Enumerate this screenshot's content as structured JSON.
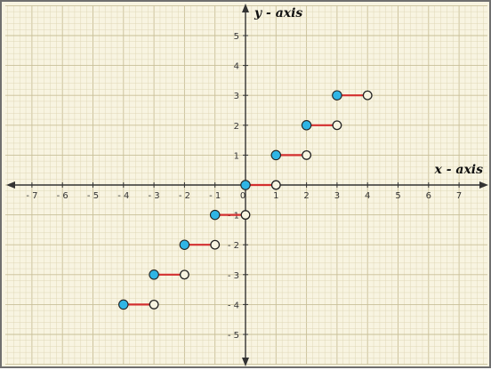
{
  "chart_data": {
    "type": "line",
    "subtype": "step-function",
    "title": "",
    "xlabel": "x - axis",
    "ylabel": "y - axis",
    "xlim": [
      -8,
      8
    ],
    "ylim": [
      -6,
      6
    ],
    "x_ticks": [
      -7,
      -6,
      -5,
      -4,
      -3,
      -2,
      -1,
      0,
      1,
      2,
      3,
      4,
      5,
      6,
      7
    ],
    "y_ticks": [
      -5,
      -4,
      -3,
      -2,
      -1,
      1,
      2,
      3,
      4,
      5
    ],
    "grid": true,
    "series": [
      {
        "segments": [
          {
            "x_start": -4,
            "x_end": -3,
            "y": -4
          },
          {
            "x_start": -3,
            "x_end": -2,
            "y": -3
          },
          {
            "x_start": -2,
            "x_end": -1,
            "y": -2
          },
          {
            "x_start": -1,
            "x_end": 0,
            "y": -1
          },
          {
            "x_start": 0,
            "x_end": 1,
            "y": 0
          },
          {
            "x_start": 1,
            "x_end": 2,
            "y": 1
          },
          {
            "x_start": 2,
            "x_end": 3,
            "y": 2
          },
          {
            "x_start": 3,
            "x_end": 4,
            "y": 3
          }
        ],
        "left_endpoint": "closed",
        "right_endpoint": "open"
      }
    ],
    "colors": {
      "background": "#f8f4e1",
      "grid_minor": "#dfd7b6",
      "grid_major": "#c9bf98",
      "axis": "#333333",
      "segment": "#d32f2f",
      "closed_point": "#2fb5e5",
      "point_outline": "#222222"
    }
  }
}
